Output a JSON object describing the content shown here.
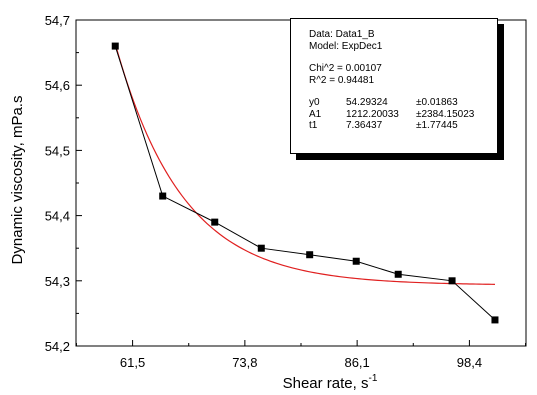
{
  "chart_data": {
    "type": "scatter",
    "title": "",
    "xlabel": "Shear rate, s",
    "xlabel_sup": "-1",
    "ylabel": "Dynamic viscosity, mPa.s",
    "xlim": [
      55.3,
      104.6
    ],
    "ylim": [
      54.2,
      54.7
    ],
    "xticks": [
      61.5,
      73.8,
      86.1,
      98.4
    ],
    "xtick_labels": [
      "61,5",
      "73,8",
      "86,1",
      "98,4"
    ],
    "yticks": [
      54.2,
      54.3,
      54.4,
      54.5,
      54.6,
      54.7
    ],
    "ytick_labels": [
      "54,2",
      "54,3",
      "54,4",
      "54,5",
      "54,6",
      "54,7"
    ],
    "grid": false,
    "series": [
      {
        "marker": "square",
        "line": "connected",
        "color": "#000000",
        "x": [
          59.6,
          64.8,
          70.5,
          75.6,
          80.9,
          86.0,
          90.6,
          96.5,
          101.2
        ],
        "y": [
          54.66,
          54.43,
          54.39,
          54.35,
          54.34,
          54.33,
          54.31,
          54.3,
          54.24
        ]
      },
      {
        "kind": "fit",
        "model": "ExpDec1",
        "color": "#e02020",
        "y0": 54.29324,
        "A1": 1212.20033,
        "t1": 7.36437,
        "x_range": [
          59.6,
          101.2
        ]
      }
    ],
    "fit_box": {
      "data_line": "Data: Data1_B",
      "model_line": "Model: ExpDec1",
      "chi_line": "Chi^2  = 0.00107",
      "r_line": "R^2  =  0.94481",
      "params": [
        {
          "name": "y0",
          "value": "54.29324",
          "error": "±0.01863"
        },
        {
          "name": "A1",
          "value": "1212.20033",
          "error": "±2384.15023"
        },
        {
          "name": "t1",
          "value": "7.36437",
          "error": "±1.77445"
        }
      ]
    }
  }
}
